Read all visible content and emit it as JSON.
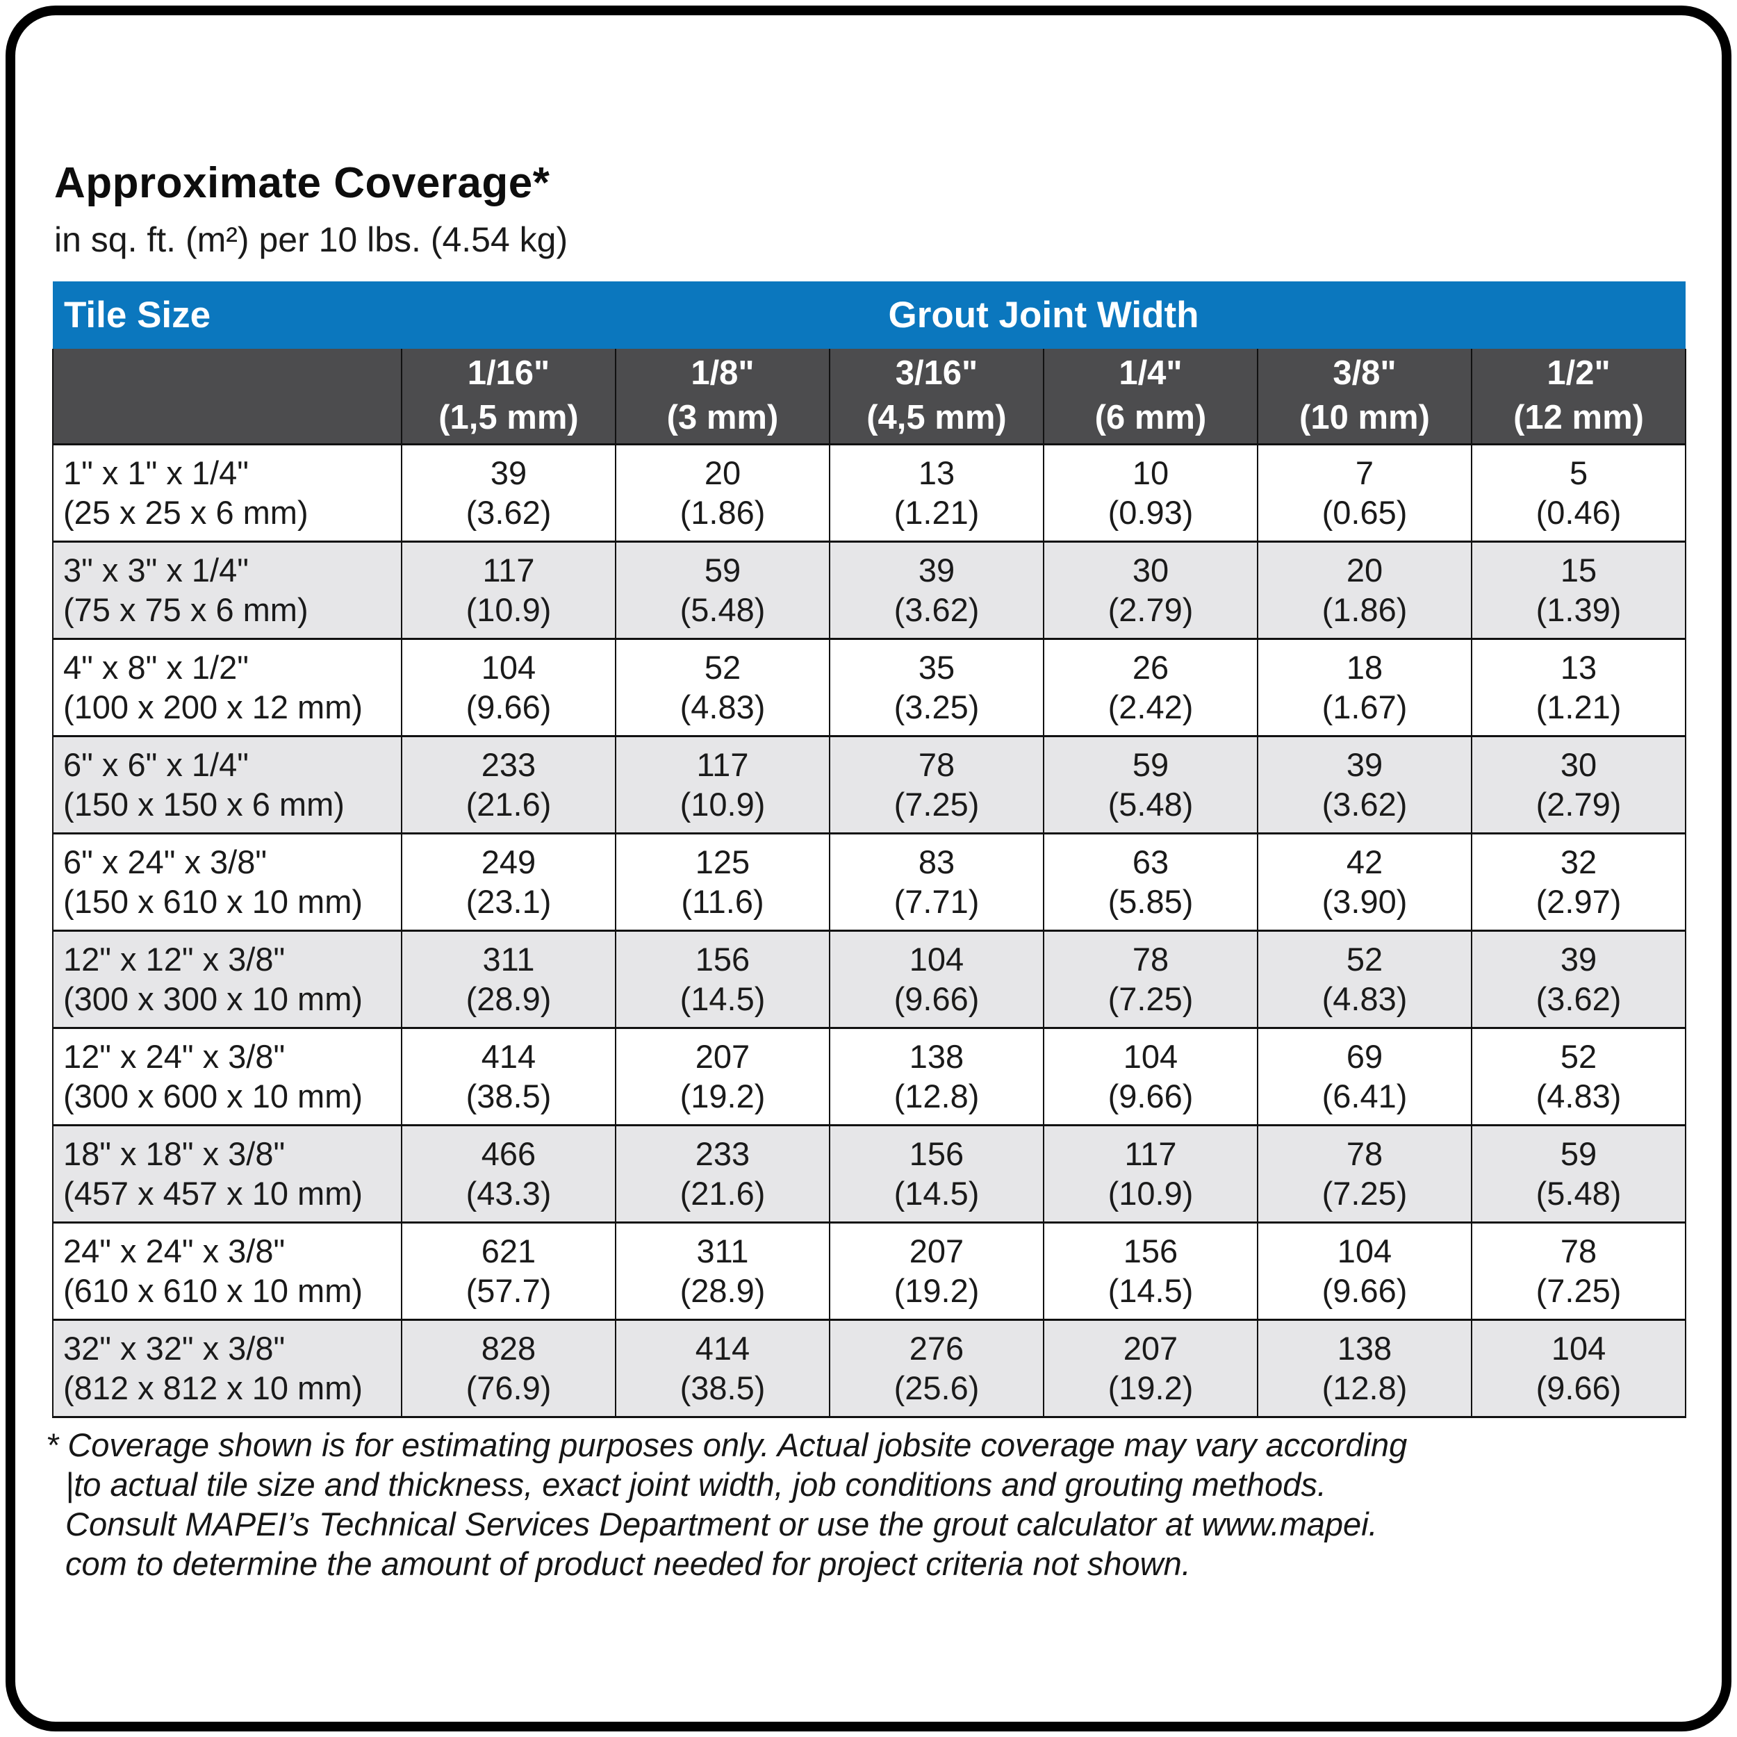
{
  "page": {
    "title": "Approximate Coverage*",
    "subtitle": "in sq. ft. (m²) per 10 lbs. (4.54 kg)"
  },
  "table": {
    "colors": {
      "header_blue": "#0b77be",
      "subheader_gray": "#4c4c4e",
      "alt_row_gray": "#e6e6e8",
      "border_black": "#111111"
    },
    "header": {
      "tile_size": "Tile Size",
      "grout_joint_width": "Grout Joint Width"
    },
    "columns": [
      {
        "inches": "1/16\"",
        "mm": "(1,5 mm)"
      },
      {
        "inches": "1/8\"",
        "mm": "(3 mm)"
      },
      {
        "inches": "3/16\"",
        "mm": "(4,5 mm)"
      },
      {
        "inches": "1/4\"",
        "mm": "(6 mm)"
      },
      {
        "inches": "3/8\"",
        "mm": "(10 mm)"
      },
      {
        "inches": "1/2\"",
        "mm": "(12 mm)"
      }
    ],
    "rows": [
      {
        "tile_in": "1\" x 1\" x 1/4\"",
        "tile_mm": "(25 x 25 x 6 mm)",
        "values": [
          {
            "sqft": "39",
            "m2": "(3.62)"
          },
          {
            "sqft": "20",
            "m2": "(1.86)"
          },
          {
            "sqft": "13",
            "m2": "(1.21)"
          },
          {
            "sqft": "10",
            "m2": "(0.93)"
          },
          {
            "sqft": "7",
            "m2": "(0.65)"
          },
          {
            "sqft": "5",
            "m2": "(0.46)"
          }
        ]
      },
      {
        "tile_in": "3\" x 3\" x 1/4\"",
        "tile_mm": "(75 x 75 x 6 mm)",
        "values": [
          {
            "sqft": "117",
            "m2": "(10.9)"
          },
          {
            "sqft": "59",
            "m2": "(5.48)"
          },
          {
            "sqft": "39",
            "m2": "(3.62)"
          },
          {
            "sqft": "30",
            "m2": "(2.79)"
          },
          {
            "sqft": "20",
            "m2": "(1.86)"
          },
          {
            "sqft": "15",
            "m2": "(1.39)"
          }
        ]
      },
      {
        "tile_in": "4\" x 8\" x 1/2\"",
        "tile_mm": "(100 x 200 x 12 mm)",
        "values": [
          {
            "sqft": "104",
            "m2": "(9.66)"
          },
          {
            "sqft": "52",
            "m2": "(4.83)"
          },
          {
            "sqft": "35",
            "m2": "(3.25)"
          },
          {
            "sqft": "26",
            "m2": "(2.42)"
          },
          {
            "sqft": "18",
            "m2": "(1.67)"
          },
          {
            "sqft": "13",
            "m2": "(1.21)"
          }
        ]
      },
      {
        "tile_in": "6\" x 6\" x 1/4\"",
        "tile_mm": "(150 x 150 x 6 mm)",
        "values": [
          {
            "sqft": "233",
            "m2": "(21.6)"
          },
          {
            "sqft": "117",
            "m2": "(10.9)"
          },
          {
            "sqft": "78",
            "m2": "(7.25)"
          },
          {
            "sqft": "59",
            "m2": "(5.48)"
          },
          {
            "sqft": "39",
            "m2": "(3.62)"
          },
          {
            "sqft": "30",
            "m2": "(2.79)"
          }
        ]
      },
      {
        "tile_in": "6\" x 24\" x 3/8\"",
        "tile_mm": "(150 x 610 x 10 mm)",
        "values": [
          {
            "sqft": "249",
            "m2": "(23.1)"
          },
          {
            "sqft": "125",
            "m2": "(11.6)"
          },
          {
            "sqft": "83",
            "m2": "(7.71)"
          },
          {
            "sqft": "63",
            "m2": "(5.85)"
          },
          {
            "sqft": "42",
            "m2": "(3.90)"
          },
          {
            "sqft": "32",
            "m2": "(2.97)"
          }
        ]
      },
      {
        "tile_in": "12\" x 12\" x 3/8\"",
        "tile_mm": "(300 x 300 x 10 mm)",
        "values": [
          {
            "sqft": "311",
            "m2": "(28.9)"
          },
          {
            "sqft": "156",
            "m2": "(14.5)"
          },
          {
            "sqft": "104",
            "m2": "(9.66)"
          },
          {
            "sqft": "78",
            "m2": "(7.25)"
          },
          {
            "sqft": "52",
            "m2": "(4.83)"
          },
          {
            "sqft": "39",
            "m2": "(3.62)"
          }
        ]
      },
      {
        "tile_in": "12\" x 24\" x 3/8\"",
        "tile_mm": "(300 x 600 x 10 mm)",
        "values": [
          {
            "sqft": "414",
            "m2": "(38.5)"
          },
          {
            "sqft": "207",
            "m2": "(19.2)"
          },
          {
            "sqft": "138",
            "m2": "(12.8)"
          },
          {
            "sqft": "104",
            "m2": "(9.66)"
          },
          {
            "sqft": "69",
            "m2": "(6.41)"
          },
          {
            "sqft": "52",
            "m2": "(4.83)"
          }
        ]
      },
      {
        "tile_in": "18\" x 18\" x 3/8\"",
        "tile_mm": "(457 x 457 x 10 mm)",
        "values": [
          {
            "sqft": "466",
            "m2": "(43.3)"
          },
          {
            "sqft": "233",
            "m2": "(21.6)"
          },
          {
            "sqft": "156",
            "m2": "(14.5)"
          },
          {
            "sqft": "117",
            "m2": "(10.9)"
          },
          {
            "sqft": "78",
            "m2": "(7.25)"
          },
          {
            "sqft": "59",
            "m2": "(5.48)"
          }
        ]
      },
      {
        "tile_in": "24\" x 24\" x 3/8\"",
        "tile_mm": "(610 x 610 x 10 mm)",
        "values": [
          {
            "sqft": "621",
            "m2": "(57.7)"
          },
          {
            "sqft": "311",
            "m2": "(28.9)"
          },
          {
            "sqft": "207",
            "m2": "(19.2)"
          },
          {
            "sqft": "156",
            "m2": "(14.5)"
          },
          {
            "sqft": "104",
            "m2": "(9.66)"
          },
          {
            "sqft": "78",
            "m2": "(7.25)"
          }
        ]
      },
      {
        "tile_in": "32\" x 32\" x 3/8\"",
        "tile_mm": "(812 x 812 x 10 mm)",
        "values": [
          {
            "sqft": "828",
            "m2": "(76.9)"
          },
          {
            "sqft": "414",
            "m2": "(38.5)"
          },
          {
            "sqft": "276",
            "m2": "(25.6)"
          },
          {
            "sqft": "207",
            "m2": "(19.2)"
          },
          {
            "sqft": "138",
            "m2": "(12.8)"
          },
          {
            "sqft": "104",
            "m2": "(9.66)"
          }
        ]
      }
    ]
  },
  "footnote": {
    "lines": [
      "* Coverage shown is for estimating purposes only. Actual jobsite coverage may vary according",
      "|to actual tile size and thickness, exact joint width, job conditions and grouting methods.",
      "Consult MAPEI’s Technical Services Department or use the grout calculator at www.mapei.",
      "com to determine the amount of product needed for project criteria not shown."
    ]
  }
}
